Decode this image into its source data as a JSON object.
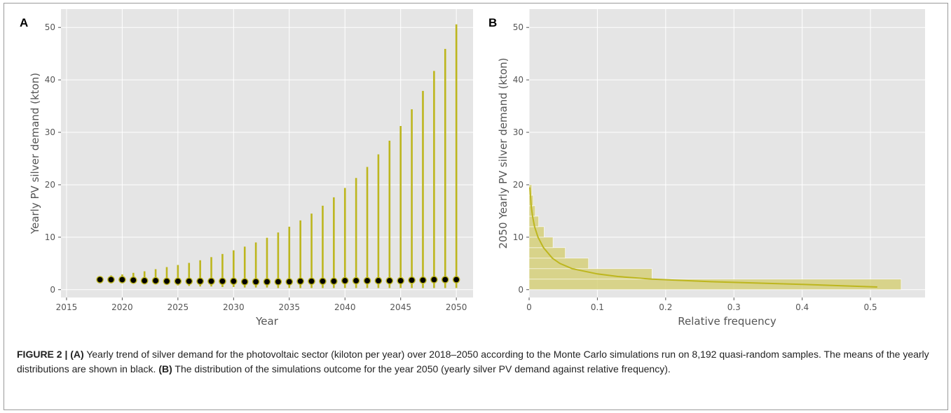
{
  "caption": {
    "figure_label": "FIGURE 2 |",
    "a_label": "(A)",
    "a_text": "Yearly trend of silver demand for the photovoltaic sector (kiloton per year) over 2018–2050 according to the Monte Carlo simulations run on 8,192 quasi-random samples. The means of the yearly distributions are shown in black.",
    "b_label": "(B)",
    "b_text": "The distribution of the simulations outcome for the year 2050 (yearly silver PV demand against relative frequency)."
  },
  "colors": {
    "panel_bg": "#e5e5e5",
    "grid": "#ffffff",
    "series": "#bdb61e",
    "fill": "#d6d07a",
    "mean_marker": "#000000"
  },
  "chart_data": [
    {
      "panel": "A",
      "type": "scatter",
      "xlabel": "Year",
      "ylabel": "Yearly PV silver demand (kton)",
      "xlim": [
        2014.5,
        2051.5
      ],
      "ylim": [
        -1.5,
        53.5
      ],
      "xticks": [
        2015,
        2020,
        2025,
        2030,
        2035,
        2040,
        2045,
        2050
      ],
      "yticks": [
        0,
        10,
        20,
        30,
        40,
        50
      ],
      "grid": true,
      "legend": "none",
      "series": [
        {
          "kind": "range",
          "x": [
            2018,
            2019,
            2020,
            2021,
            2022,
            2023,
            2024,
            2025,
            2026,
            2027,
            2028,
            2029,
            2030,
            2031,
            2032,
            2033,
            2034,
            2035,
            2036,
            2037,
            2038,
            2039,
            2040,
            2041,
            2042,
            2043,
            2044,
            2045,
            2046,
            2047,
            2048,
            2049,
            2050
          ],
          "low": [
            1.4,
            1.4,
            1.3,
            1.2,
            1.1,
            1.0,
            0.9,
            0.8,
            0.7,
            0.6,
            0.6,
            0.5,
            0.5,
            0.4,
            0.4,
            0.4,
            0.3,
            0.3,
            0.3,
            0.3,
            0.3,
            0.3,
            0.3,
            0.3,
            0.3,
            0.3,
            0.3,
            0.3,
            0.3,
            0.3,
            0.3,
            0.3,
            0.3
          ],
          "high": [
            2.5,
            2.7,
            2.9,
            3.2,
            3.5,
            3.9,
            4.3,
            4.7,
            5.1,
            5.6,
            6.2,
            6.8,
            7.5,
            8.2,
            9.0,
            9.9,
            10.9,
            12.0,
            13.2,
            14.5,
            16.0,
            17.6,
            19.4,
            21.3,
            23.4,
            25.8,
            28.4,
            31.2,
            34.4,
            37.9,
            41.7,
            45.9,
            50.6
          ]
        },
        {
          "kind": "mean",
          "x": [
            2018,
            2019,
            2020,
            2021,
            2022,
            2023,
            2024,
            2025,
            2026,
            2027,
            2028,
            2029,
            2030,
            2031,
            2032,
            2033,
            2034,
            2035,
            2036,
            2037,
            2038,
            2039,
            2040,
            2041,
            2042,
            2043,
            2044,
            2045,
            2046,
            2047,
            2048,
            2049,
            2050
          ],
          "y": [
            1.9,
            1.9,
            1.9,
            1.8,
            1.7,
            1.7,
            1.6,
            1.6,
            1.6,
            1.6,
            1.6,
            1.6,
            1.6,
            1.5,
            1.5,
            1.5,
            1.5,
            1.5,
            1.6,
            1.6,
            1.6,
            1.6,
            1.7,
            1.7,
            1.7,
            1.7,
            1.7,
            1.7,
            1.8,
            1.8,
            1.9,
            1.9,
            1.9
          ]
        }
      ]
    },
    {
      "panel": "B",
      "type": "area",
      "xlabel": "Relative frequency",
      "ylabel": "2050 Yearly PV silver demand (kton)",
      "xlim": [
        0.0,
        0.58
      ],
      "ylim": [
        -1.5,
        53.5
      ],
      "xticks": [
        0.0,
        0.1,
        0.2,
        0.3,
        0.4,
        0.5
      ],
      "yticks": [
        0,
        10,
        20,
        30,
        40,
        50
      ],
      "grid": true,
      "legend": "none",
      "histogram": {
        "bins": [
          [
            0.0,
            2.0
          ],
          [
            2.0,
            4.0
          ],
          [
            4.0,
            6.0
          ],
          [
            6.0,
            8.0
          ],
          [
            8.0,
            10.0
          ],
          [
            10.0,
            12.0
          ],
          [
            12.0,
            14.0
          ],
          [
            14.0,
            16.0
          ],
          [
            16.0,
            18.0
          ],
          [
            18.0,
            20.0
          ]
        ],
        "frequency": [
          0.545,
          0.18,
          0.087,
          0.053,
          0.035,
          0.022,
          0.014,
          0.009,
          0.006,
          0.004
        ]
      },
      "density_curve": {
        "y": [
          0.5,
          1.0,
          1.5,
          2.0,
          2.5,
          3.0,
          4.0,
          5.0,
          6.0,
          8.0,
          10.0,
          12.0,
          14.0,
          16.0,
          18.0,
          19.5
        ],
        "frequency": [
          0.51,
          0.4,
          0.27,
          0.18,
          0.13,
          0.1,
          0.063,
          0.045,
          0.034,
          0.021,
          0.013,
          0.008,
          0.005,
          0.003,
          0.002,
          0.001
        ]
      }
    }
  ]
}
